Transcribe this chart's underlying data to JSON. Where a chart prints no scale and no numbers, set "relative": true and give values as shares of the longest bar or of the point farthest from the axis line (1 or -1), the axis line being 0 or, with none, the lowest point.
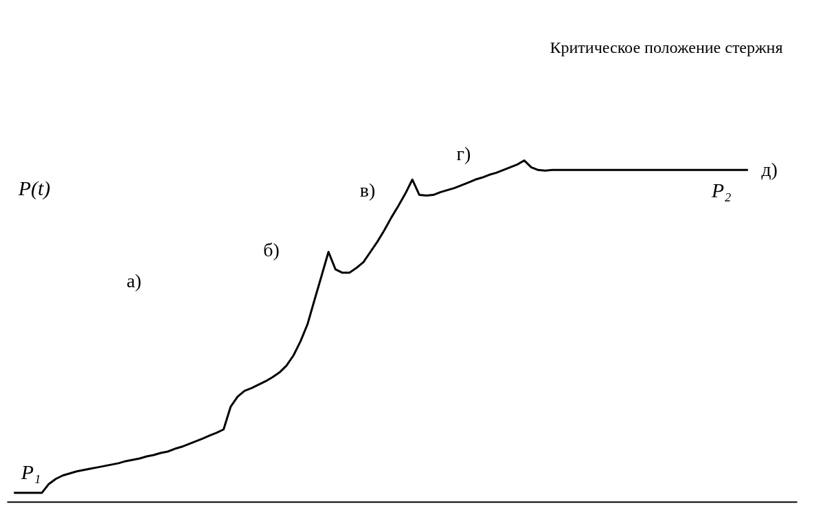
{
  "chart_data": {
    "type": "line",
    "relative": true,
    "tick_labels": false,
    "color": "#000000",
    "categories": [
      null,
      null,
      null,
      null,
      null,
      null,
      null,
      null,
      null,
      null,
      null,
      null,
      null,
      null,
      null,
      null,
      null,
      null,
      null,
      null,
      null,
      null,
      null,
      null,
      null,
      null,
      null,
      null,
      null,
      null,
      null,
      null,
      null,
      null,
      null,
      null,
      null,
      null,
      null,
      null,
      null,
      null,
      null,
      null,
      null,
      null,
      null,
      null,
      null,
      null,
      null,
      null,
      null,
      null,
      null,
      null,
      null,
      null,
      null,
      null,
      null,
      null,
      null,
      null,
      null,
      null,
      null,
      null,
      null,
      null,
      null,
      null,
      null,
      null,
      null,
      null,
      null,
      null,
      null,
      null,
      null,
      null,
      null,
      null,
      null,
      null,
      null,
      null,
      null,
      null,
      null,
      null,
      null,
      null,
      null,
      null,
      null,
      null,
      null,
      null,
      null,
      null,
      null,
      null,
      null,
      null
    ],
    "values": [
      0.026,
      0.026,
      0.026,
      0.026,
      0.026,
      0.052,
      0.067,
      0.077,
      0.083,
      0.089,
      0.093,
      0.097,
      0.101,
      0.105,
      0.109,
      0.113,
      0.119,
      0.123,
      0.127,
      0.133,
      0.137,
      0.143,
      0.147,
      0.155,
      0.161,
      0.169,
      0.177,
      0.185,
      0.194,
      0.202,
      0.212,
      0.278,
      0.308,
      0.325,
      0.333,
      0.343,
      0.353,
      0.365,
      0.379,
      0.399,
      0.429,
      0.47,
      0.52,
      0.591,
      0.661,
      0.732,
      0.681,
      0.671,
      0.671,
      0.685,
      0.702,
      0.732,
      0.762,
      0.796,
      0.833,
      0.867,
      0.903,
      0.944,
      0.899,
      0.897,
      0.899,
      0.907,
      0.913,
      0.919,
      0.927,
      0.935,
      0.944,
      0.95,
      0.958,
      0.964,
      0.972,
      0.98,
      0.988,
      1,
      0.98,
      0.972,
      0.97,
      0.972,
      0.972,
      0.972,
      0.972,
      0.972,
      0.972,
      0.972,
      0.972,
      0.972,
      0.972,
      0.972,
      0.972,
      0.972,
      0.972,
      0.972,
      0.972,
      0.972,
      0.972,
      0.972,
      0.972,
      0.972,
      0.972,
      0.972,
      0.972,
      0.972,
      0.972,
      0.972,
      0.972,
      0.972
    ],
    "annotations": [
      "P(t)",
      "P₁",
      "P₂",
      "а)",
      "б)",
      "в)",
      "г)",
      "д)",
      "Критическое положение стержня"
    ]
  }
}
